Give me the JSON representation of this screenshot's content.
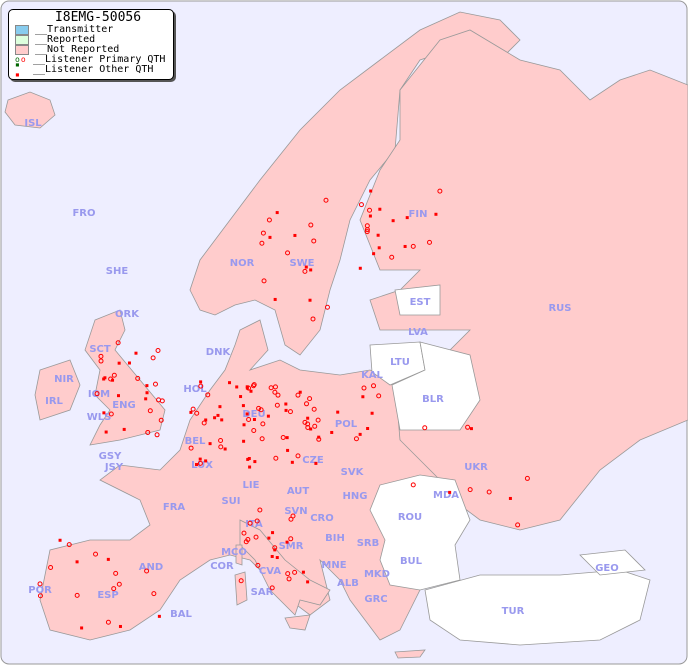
{
  "legend": {
    "title": "I8EMG-50056",
    "items": [
      {
        "label": "__Transmitter",
        "color": "#88ccee"
      },
      {
        "label": "__Reported",
        "color": "#ddffdd"
      },
      {
        "label": "__Not Reported",
        "color": "#ffcccc"
      },
      {
        "label": "__Listener Primary QTH",
        "marker": "circle"
      },
      {
        "label": "__Listener Other QTH",
        "marker": "square"
      }
    ]
  },
  "colors": {
    "sea": "#eeeeff",
    "not_reported": "#ffcccc",
    "no_data": "#ffffff",
    "label": "#9999ee",
    "marker": "#ff0000",
    "border": "#999999"
  },
  "countries": [
    "ISL",
    "FRO",
    "SHE",
    "ORK",
    "NOR",
    "SWE",
    "FIN",
    "EST",
    "LVA",
    "LTU",
    "KAL",
    "RUS",
    "BLR",
    "DNK",
    "HOL",
    "DEU",
    "POL",
    "UKR",
    "IOM",
    "WLS",
    "IRL",
    "NIR",
    "SCT",
    "ENG",
    "BEL",
    "LUX",
    "GSY",
    "JSY",
    "FRA",
    "SUI",
    "LIE",
    "AUT",
    "CZE",
    "SVK",
    "HNG",
    "SVN",
    "CRO",
    "ITA",
    "MDA",
    "ROU",
    "SRB",
    "BIH",
    "MNE",
    "ALB",
    "MKD",
    "BUL",
    "GRC",
    "TUR",
    "GEO",
    "MCO",
    "COR",
    "CVA",
    "SMR",
    "SAR",
    "AND",
    "POR",
    "ESP",
    "BAL"
  ]
}
